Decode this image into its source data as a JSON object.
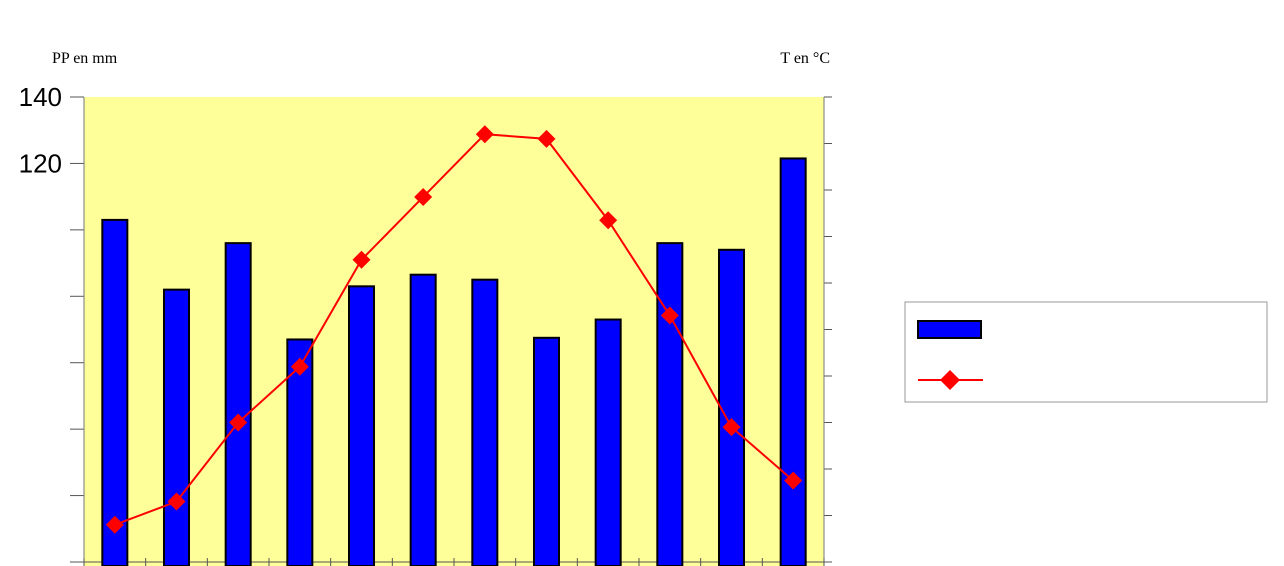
{
  "chart_data": {
    "type": "bar",
    "categories": [
      "",
      "",
      "",
      "",
      "",
      "",
      "",
      "",
      "",
      "",
      "",
      ""
    ],
    "left_axis": {
      "label": "PP en mm",
      "label_color": "#0000ff",
      "ylim": [
        0,
        140
      ],
      "tick_labels": [
        {
          "value": 140,
          "text": "140"
        },
        {
          "value": 120,
          "text": "120"
        }
      ],
      "ticks": [
        0,
        20,
        40,
        60,
        80,
        100,
        120,
        140
      ]
    },
    "right_axis": {
      "label": "T en °C",
      "label_color": "#ff0000",
      "ylim": [
        0,
        10
      ],
      "ticks": [
        0,
        1,
        2,
        3,
        4,
        5,
        6,
        7,
        8,
        9,
        10
      ]
    },
    "series": [
      {
        "type": "bar",
        "axis": "left",
        "color": "#0000ff",
        "values": [
          103,
          82,
          96,
          67,
          83,
          86.5,
          85,
          67.5,
          73,
          96,
          94,
          121.5
        ]
      },
      {
        "type": "line",
        "axis": "right",
        "color": "#ff0000",
        "marker": "diamond",
        "values": [
          0.8,
          1.3,
          3.0,
          4.2,
          6.5,
          7.85,
          9.2,
          9.1,
          7.35,
          5.3,
          2.9,
          1.75
        ]
      }
    ],
    "plot_background": "#ffff99",
    "legend": {
      "position": "right",
      "entries": [
        "",
        ""
      ]
    }
  }
}
